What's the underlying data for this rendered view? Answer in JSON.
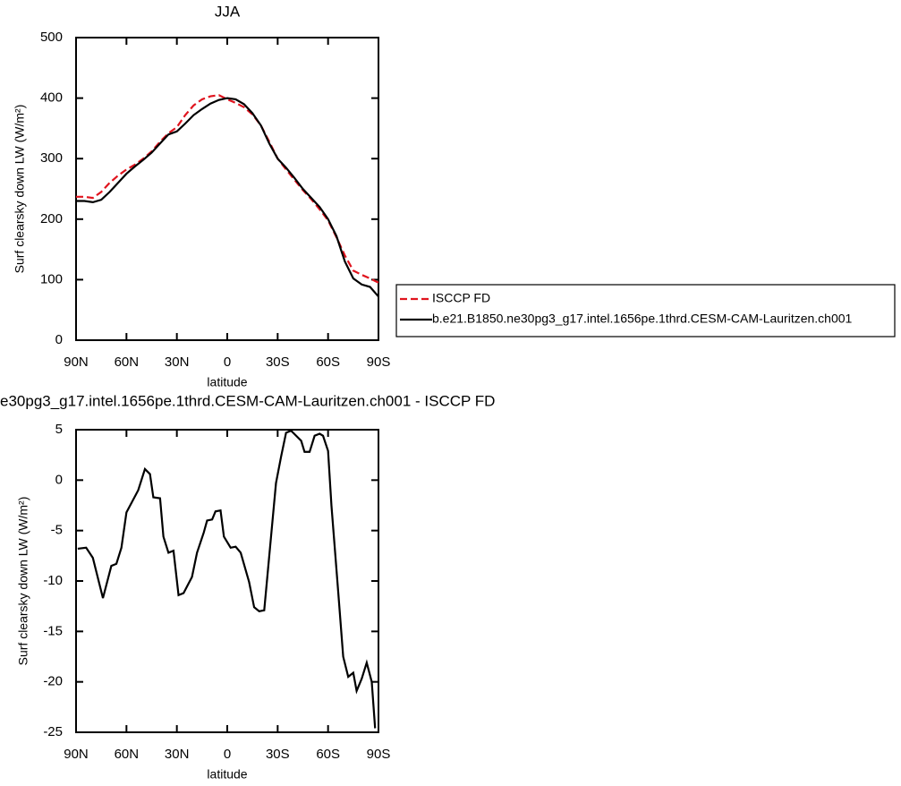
{
  "chart_data": [
    {
      "type": "line",
      "title": "JJA",
      "x_label": "latitude",
      "y_label": "Surf clearsky down LW (W/m²)",
      "x": [
        90,
        85,
        80,
        75,
        70,
        65,
        60,
        55,
        50,
        45,
        40,
        35,
        30,
        25,
        20,
        15,
        10,
        5,
        0,
        -5,
        -10,
        -15,
        -20,
        -25,
        -30,
        -35,
        -40,
        -45,
        -50,
        -55,
        -60,
        -65,
        -70,
        -75,
        -80,
        -85,
        -90
      ],
      "series": [
        {
          "name": "ISCCP FD",
          "color": "#e0141e",
          "line_style": "dashed",
          "values": [
            237,
            237,
            235,
            245,
            260,
            272,
            282,
            290,
            300,
            312,
            328,
            342,
            352,
            372,
            388,
            398,
            403,
            405,
            398,
            392,
            385,
            373,
            355,
            328,
            300,
            282,
            265,
            248,
            233,
            216,
            198,
            170,
            140,
            115,
            108,
            102,
            95
          ]
        },
        {
          "name": "b.e21.B1850.ne30pg3_g17.intel.1656pe.1thrd.CESM-CAM-Lauritzen.ch001",
          "color": "#000000",
          "line_style": "solid",
          "values": [
            230,
            230,
            228,
            232,
            245,
            260,
            275,
            287,
            298,
            310,
            325,
            340,
            345,
            358,
            372,
            382,
            391,
            397,
            400,
            398,
            390,
            375,
            355,
            325,
            300,
            285,
            268,
            250,
            235,
            220,
            200,
            172,
            130,
            102,
            92,
            88,
            72
          ]
        }
      ],
      "xlim": [
        90,
        -90
      ],
      "xticks": [
        {
          "value": 90,
          "label": "90N"
        },
        {
          "value": 60,
          "label": "60N"
        },
        {
          "value": 30,
          "label": "30N"
        },
        0,
        {
          "value": -30,
          "label": "30S"
        },
        {
          "value": -60,
          "label": "60S"
        },
        {
          "value": -90,
          "label": "90S"
        }
      ],
      "ylim": [
        0,
        500
      ],
      "yticks": [
        0,
        100,
        200,
        300,
        400,
        500
      ],
      "legend": "right"
    },
    {
      "type": "line",
      "title": "e30pg3_g17.intel.1656pe.1thrd.CESM-CAM-Lauritzen.ch001 - ISCCP FD",
      "x_label": "latitude",
      "y_label": "Surf clearsky down LW (W/m²)",
      "x": [
        89,
        84,
        80,
        74,
        69,
        66,
        63,
        60,
        53,
        49,
        46,
        44,
        40,
        38,
        35,
        32,
        29,
        26,
        21,
        18,
        14,
        12,
        9,
        7,
        4,
        2,
        -2,
        -5,
        -8,
        -13,
        -16,
        -19,
        -22,
        -26,
        -29,
        -32,
        -35,
        -38,
        -41,
        -44,
        -46,
        -49,
        -52,
        -55,
        -57,
        -60,
        -62,
        -66,
        -69,
        -72,
        -75,
        -77,
        -80,
        -83,
        -86,
        -88
      ],
      "values": [
        -6.8,
        -6.7,
        -7.7,
        -11.7,
        -8.5,
        -8.3,
        -6.7,
        -3.2,
        -1.0,
        1.1,
        0.6,
        -1.7,
        -1.8,
        -5.6,
        -7.2,
        -7.0,
        -11.4,
        -11.2,
        -9.6,
        -7.2,
        -5.2,
        -4.0,
        -3.9,
        -3.1,
        -3.0,
        -5.6,
        -6.7,
        -6.6,
        -7.2,
        -10.1,
        -12.6,
        -13.0,
        -12.9,
        -5.7,
        -0.3,
        2.3,
        4.7,
        4.9,
        4.4,
        3.9,
        2.8,
        2.8,
        4.4,
        4.6,
        4.4,
        2.9,
        -2.5,
        -11.0,
        -17.5,
        -19.5,
        -19.1,
        -20.9,
        -19.7,
        -18.1,
        -20.0,
        -24.6
      ],
      "color": "#000000",
      "xlim": [
        90,
        -90
      ],
      "xticks": [
        {
          "value": 90,
          "label": "90N"
        },
        {
          "value": 60,
          "label": "60N"
        },
        {
          "value": 30,
          "label": "30N"
        },
        0,
        {
          "value": -30,
          "label": "30S"
        },
        {
          "value": -60,
          "label": "60S"
        },
        {
          "value": -90,
          "label": "90S"
        }
      ],
      "ylim": [
        -25,
        5
      ],
      "yticks": [
        -25,
        -20,
        -15,
        -10,
        -5,
        0,
        5
      ]
    }
  ]
}
